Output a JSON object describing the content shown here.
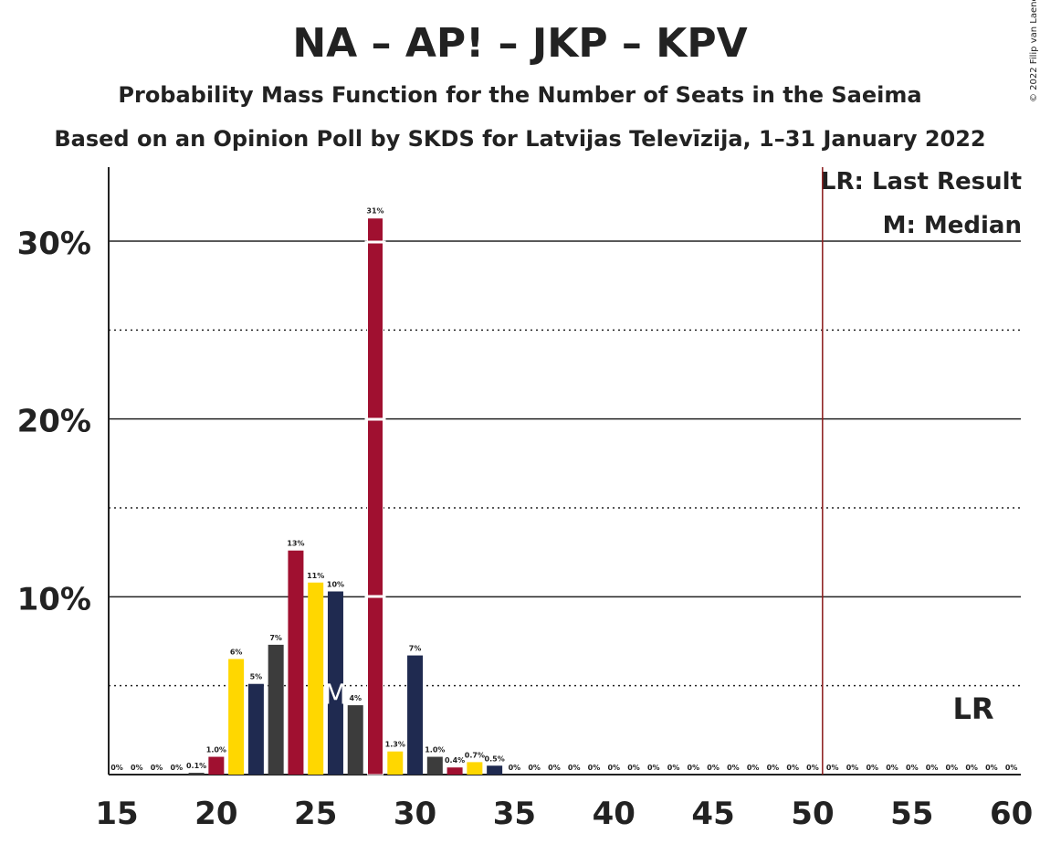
{
  "chart_data": {
    "type": "bar",
    "title": "NA – AP! – JKP – KPV",
    "subtitle": "Probability Mass Function for the Number of Seats in the Saeima",
    "subtitle2": "Based on an Opinion Poll by SKDS for Latvijas Televīzija, 1–31 January 2022",
    "copyright": "© 2022 Filip van Laenen",
    "legend": {
      "last_result": "LR: Last Result",
      "median": "M: Median"
    },
    "x": [
      16,
      17,
      18,
      19,
      20,
      21,
      22,
      23,
      24,
      25,
      26,
      27,
      28,
      29,
      30,
      31,
      32,
      33,
      34,
      35,
      36,
      37,
      38,
      39,
      40,
      41,
      42,
      43,
      44,
      45,
      46,
      47,
      48,
      49,
      50,
      51,
      52,
      53,
      54,
      55,
      56,
      57,
      58,
      59,
      60
    ],
    "values": [
      0,
      0,
      0,
      0.1,
      1.0,
      6.5,
      5.1,
      7.3,
      12.6,
      10.8,
      10.3,
      3.9,
      31.3,
      1.3,
      6.7,
      1.0,
      0.4,
      0.7,
      0.5,
      0,
      0,
      0,
      0,
      0,
      0,
      0,
      0,
      0,
      0,
      0,
      0,
      0,
      0,
      0,
      0,
      0,
      0,
      0,
      0,
      0,
      0,
      0,
      0,
      0,
      0
    ],
    "labels": [
      "0%",
      "0%",
      "0%",
      "0%",
      "0.1%",
      "1.0%",
      "6%",
      "5%",
      "7%",
      "13%",
      "11%",
      "10%",
      "4%",
      "31%",
      "1.3%",
      "7%",
      "1.0%",
      "0.4%",
      "0.7%",
      "0.5%",
      "0%",
      "0%",
      "0%",
      "0%",
      "0%",
      "0%",
      "0%",
      "0%",
      "0%",
      "0%",
      "0%",
      "0%",
      "0%",
      "0%",
      "0%",
      "0%",
      "0%",
      "0%",
      "0%",
      "0%",
      "0%",
      "0%",
      "0%",
      "0%",
      "0%",
      "0%"
    ],
    "label_x": [
      15,
      16,
      17,
      18,
      19,
      20,
      21,
      22,
      23,
      24,
      25,
      26,
      27,
      28,
      29,
      30,
      31,
      32,
      33,
      34,
      35,
      36,
      37,
      38,
      39,
      40,
      41,
      42,
      43,
      44,
      45,
      46,
      47,
      48,
      49,
      50,
      51,
      52,
      53,
      54,
      55,
      56,
      57,
      58,
      59,
      60
    ],
    "label_values": [
      0,
      0,
      0,
      0,
      0.1,
      1.0,
      6.5,
      5.1,
      7.3,
      12.6,
      10.8,
      10.3,
      3.9,
      31.3,
      1.3,
      6.7,
      1.0,
      0.4,
      0.7,
      0.5,
      0,
      0,
      0,
      0,
      0,
      0,
      0,
      0,
      0,
      0,
      0,
      0,
      0,
      0,
      0,
      0,
      0,
      0,
      0,
      0,
      0,
      0,
      0,
      0,
      0,
      0
    ],
    "xticks": [
      15,
      20,
      25,
      30,
      35,
      40,
      45,
      50,
      55,
      60
    ],
    "xtick_labels": [
      "15",
      "20",
      "25",
      "30",
      "35",
      "40",
      "45",
      "50",
      "55",
      "60"
    ],
    "yticks": [
      10,
      20,
      30
    ],
    "ytick_labels": [
      "10%",
      "20%",
      "30%"
    ],
    "ylim": [
      0,
      34
    ],
    "xlim": [
      15,
      60
    ],
    "last_result": 51,
    "last_result_label": "LR",
    "median": 26,
    "median_label": "M",
    "colors": {
      "red": "#a01030",
      "yellow": "#ffd700",
      "navy": "#1f2a50",
      "dark": "#3c3c3c",
      "lr_line": "#8b1a1a"
    },
    "bar_colors": [
      "red",
      "red",
      "yellow",
      "navy",
      "dark",
      "red",
      "yellow",
      "navy",
      "dark",
      "red",
      "yellow",
      "navy",
      "dark",
      "red",
      "yellow",
      "navy",
      "dark",
      "red",
      "yellow",
      "navy",
      "dark",
      "red",
      "yellow",
      "navy",
      "dark",
      "red",
      "yellow",
      "navy",
      "dark",
      "red",
      "yellow",
      "navy",
      "dark",
      "red",
      "yellow",
      "navy",
      "dark",
      "red",
      "yellow",
      "navy",
      "dark",
      "red",
      "yellow",
      "navy",
      "dark",
      "red"
    ]
  }
}
